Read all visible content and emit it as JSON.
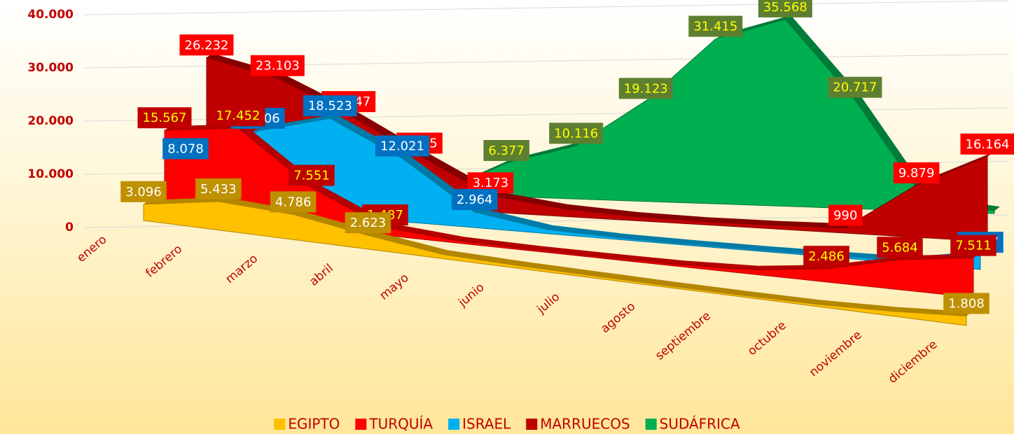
{
  "chart_data": {
    "type": "area3d",
    "categories": [
      "enero",
      "febrero",
      "marzo",
      "abril",
      "mayo",
      "junio",
      "julio",
      "agosto",
      "septiembre",
      "octubre",
      "noviembre",
      "diciembre"
    ],
    "ylim": [
      0,
      40000
    ],
    "yticks": [
      0,
      {
        "value": 10000,
        "label": "10.000"
      },
      {
        "value": 20000,
        "label": "20.000"
      },
      {
        "value": 30000,
        "label": "30.000"
      },
      {
        "value": 40000,
        "label": "40.000"
      }
    ],
    "grid": true,
    "legend": "bottom",
    "series": [
      {
        "name": "EGIPTO",
        "color": "#FFC000",
        "label_fill": "#BF9000",
        "label_color": "#FFFFFF",
        "values": [
          3096,
          5433,
          4786,
          2623,
          800,
          500,
          400,
          300,
          300,
          400,
          900,
          1808
        ],
        "value_labels": [
          "3.096",
          "5.433",
          "4.786",
          "2.623",
          null,
          null,
          null,
          null,
          null,
          null,
          null,
          "1.808"
        ]
      },
      {
        "name": "TURQUÍA",
        "color": "#FF0000",
        "label_fill": "#C00000",
        "label_color": "#FFFF00",
        "values": [
          15567,
          17452,
          7551,
          1487,
          400,
          200,
          200,
          300,
          800,
          2486,
          5684,
          7511
        ],
        "value_labels": [
          "15.567",
          "17.452",
          "7.551",
          "1.487",
          null,
          null,
          null,
          null,
          null,
          "2.486",
          "5.684",
          "7.511"
        ]
      },
      {
        "name": "ISRAEL",
        "color": "#00B0F0",
        "label_fill": "#0070C0",
        "label_color": "#FFFFFF",
        "values": [
          8078,
          15006,
          18523,
          12021,
          2964,
          800,
          300,
          200,
          200,
          300,
          500,
          2787
        ],
        "value_labels": [
          "8.078",
          "15.006",
          "18.523",
          "12.021",
          "2.964",
          null,
          null,
          null,
          null,
          null,
          null,
          "2.787"
        ]
      },
      {
        "name": "MARRUECOS",
        "color": "#C00000",
        "label_fill": "#FF0000",
        "label_color": "#FFFFFF",
        "values": [
          26232,
          23103,
          17047,
          9935,
          3173,
          1500,
          800,
          600,
          700,
          990,
          9879,
          16164
        ],
        "value_labels": [
          "26.232",
          "23.103",
          "17.047",
          "9.935",
          "3.173",
          null,
          null,
          null,
          null,
          "990",
          "9.879",
          "16.164"
        ]
      },
      {
        "name": "SUDÁFRICA",
        "color": "#00B050",
        "label_fill": "#5E7F30",
        "label_color": "#FFFF00",
        "values": [
          0,
          0,
          0,
          0,
          6377,
          10116,
          19123,
          31415,
          35568,
          20717,
          2000,
          500
        ],
        "value_labels": [
          null,
          null,
          null,
          null,
          "6.377",
          "10.116",
          "19.123",
          "31.415",
          "35.568",
          "20.717",
          null,
          null
        ]
      }
    ]
  }
}
